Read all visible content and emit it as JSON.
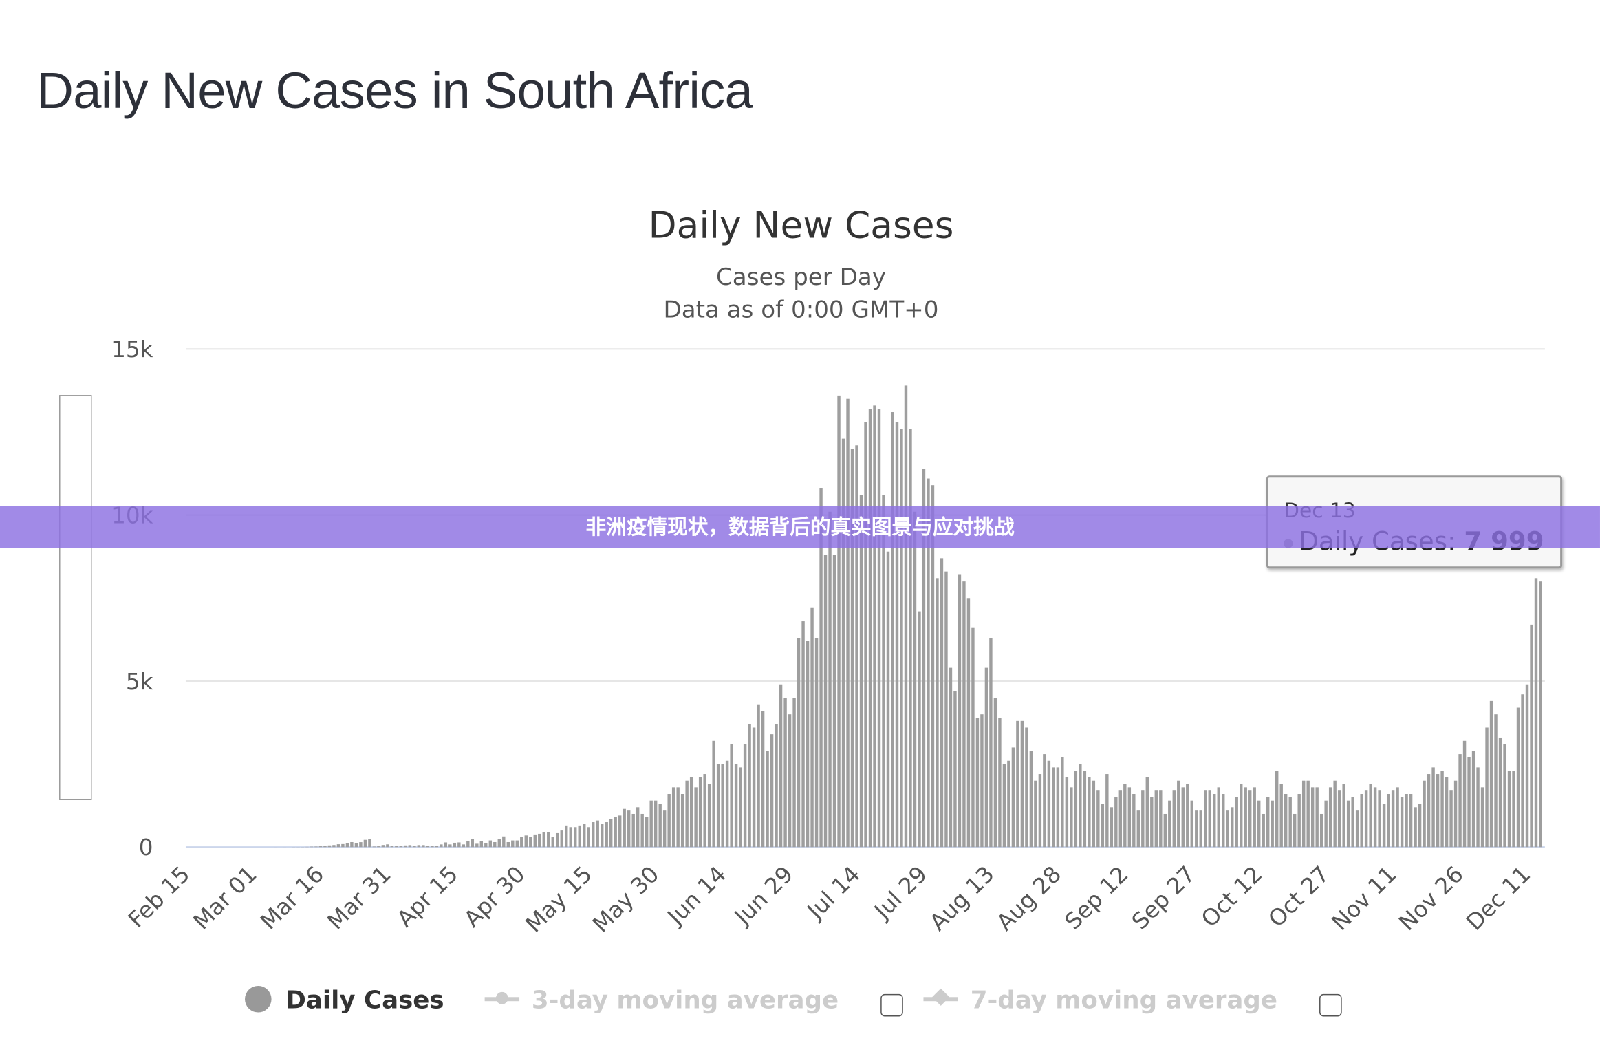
{
  "page_title": "Daily New Cases in South Africa",
  "banner_text": "非洲疫情现状，数据背后的真实图景与应对挑战",
  "colors": {
    "bar": "#9e9e9e",
    "banner": "#8c70e2",
    "grid": "#e6e6e6",
    "disabled_legend": "#cccccc"
  },
  "tooltip": {
    "date": "Dec 13",
    "series": "Daily Cases:",
    "value": "7 999"
  },
  "legend": {
    "items": [
      {
        "label": "Daily Cases",
        "icon": "circle-marker-icon",
        "enabled": true
      },
      {
        "label": "3-day moving average",
        "icon": "line-marker-icon",
        "enabled": false
      },
      {
        "label": "7-day moving average",
        "icon": "line-marker-icon",
        "enabled": false
      }
    ]
  },
  "chart_data": {
    "type": "bar",
    "title": "Daily New Cases",
    "subtitle": "Cases per Day",
    "subtitle2": "Data as of 0:00 GMT+0",
    "xlabel": "",
    "ylabel": "",
    "ylim": [
      0,
      15000
    ],
    "y_ticks": [
      {
        "value": 0,
        "label": "0"
      },
      {
        "value": 5000,
        "label": "5k"
      },
      {
        "value": 10000,
        "label": "10k"
      },
      {
        "value": 15000,
        "label": "15k"
      }
    ],
    "x_tick_labels": [
      "Feb 15",
      "Mar 01",
      "Mar 16",
      "Mar 31",
      "Apr 15",
      "Apr 30",
      "May 15",
      "May 30",
      "Jun 14",
      "Jun 29",
      "Jul 14",
      "Jul 29",
      "Aug 13",
      "Aug 28",
      "Sep 12",
      "Sep 27",
      "Oct 12",
      "Oct 27",
      "Nov 11",
      "Nov 26",
      "Dec 11"
    ],
    "x_tick_interval_days": 15,
    "grid": true,
    "legend_position": "bottom",
    "series": [
      {
        "name": "Daily Cases",
        "values": [
          0,
          0,
          0,
          0,
          0,
          0,
          0,
          0,
          0,
          0,
          0,
          0,
          0,
          0,
          0,
          0,
          0,
          0,
          0,
          1,
          0,
          1,
          0,
          3,
          3,
          4,
          7,
          13,
          16,
          24,
          38,
          51,
          62,
          85,
          90,
          116,
          150,
          128,
          148,
          218,
          243,
          17,
          24,
          63,
          82,
          28,
          27,
          30,
          50,
          60,
          40,
          60,
          60,
          34,
          40,
          30,
          80,
          140,
          80,
          130,
          140,
          80,
          180,
          250,
          100,
          190,
          120,
          200,
          150,
          250,
          320,
          150,
          200,
          200,
          300,
          350,
          300,
          380,
          400,
          450,
          450,
          300,
          420,
          500,
          650,
          600,
          600,
          650,
          700,
          600,
          750,
          800,
          700,
          750,
          850,
          900,
          950,
          1150,
          1100,
          1000,
          1200,
          1000,
          900,
          1400,
          1400,
          1300,
          1100,
          1600,
          1800,
          1800,
          1600,
          2000,
          2100,
          1800,
          2100,
          2200,
          1900,
          3200,
          2500,
          2500,
          2600,
          3100,
          2500,
          2400,
          3100,
          3700,
          3600,
          4300,
          4100,
          2900,
          3400,
          3700,
          4900,
          4500,
          4000,
          4500,
          6300,
          6800,
          6200,
          7200,
          6300,
          10800,
          8800,
          10100,
          8800,
          13600,
          12300,
          13500,
          12000,
          12100,
          10600,
          12800,
          13200,
          13300,
          13200,
          10600,
          8900,
          13100,
          12800,
          12600,
          13900,
          12600,
          10100,
          7100,
          11400,
          11100,
          10900,
          8100,
          8700,
          8300,
          5400,
          4700,
          8200,
          8000,
          7500,
          6600,
          3900,
          4000,
          5400,
          6300,
          4500,
          3900,
          2500,
          2600,
          3000,
          3800,
          3800,
          3600,
          2900,
          2000,
          2200,
          2800,
          2600,
          2400,
          2400,
          2700,
          2100,
          1800,
          2300,
          2500,
          2300,
          2100,
          2000,
          1700,
          1300,
          2200,
          1200,
          1500,
          1700,
          1900,
          1800,
          1600,
          1100,
          1700,
          2100,
          1500,
          1700,
          1700,
          1000,
          1400,
          1700,
          2000,
          1800,
          1900,
          1400,
          1100,
          1100,
          1700,
          1700,
          1600,
          1800,
          1600,
          1100,
          1200,
          1500,
          1900,
          1800,
          1700,
          1800,
          1400,
          1000,
          1500,
          1400,
          2300,
          1900,
          1600,
          1500,
          1000,
          1600,
          2000,
          2000,
          1800,
          1800,
          1000,
          1400,
          1800,
          2000,
          1700,
          1900,
          1400,
          1500,
          1100,
          1600,
          1700,
          1900,
          1800,
          1700,
          1300,
          1600,
          1700,
          1800,
          1500,
          1600,
          1600,
          1200,
          1300,
          2000,
          2200,
          2400,
          2200,
          2300,
          2100,
          1700,
          2000,
          2800,
          3200,
          2700,
          2900,
          2400,
          1800,
          3600,
          4400,
          4000,
          3300,
          3100,
          2300,
          2300,
          4200,
          4600,
          4900,
          6700,
          8100,
          7999
        ]
      }
    ]
  }
}
